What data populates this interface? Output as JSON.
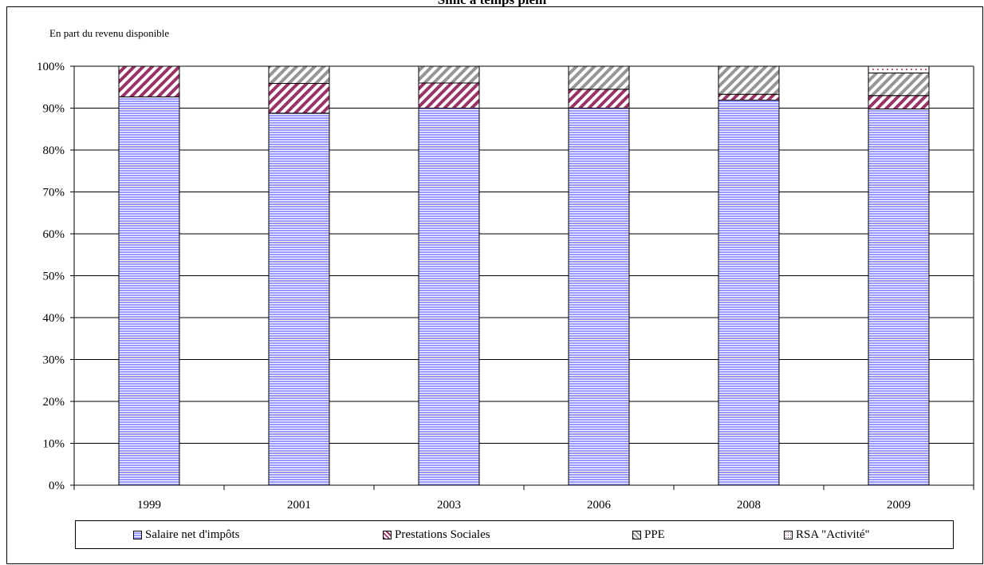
{
  "page": {
    "title": "Smic à temps plein"
  },
  "chart_data": {
    "type": "bar",
    "stacked": true,
    "title": "Smic à temps plein",
    "ylabel": "En part du revenu disponible",
    "xlabel": "",
    "categories": [
      "1999",
      "2001",
      "2003",
      "2006",
      "2008",
      "2009"
    ],
    "ylim": [
      0,
      100
    ],
    "ytick_labels": [
      "0%",
      "10%",
      "20%",
      "30%",
      "40%",
      "50%",
      "60%",
      "70%",
      "80%",
      "90%",
      "100%"
    ],
    "grid": true,
    "legend_position": "bottom",
    "series": [
      {
        "name": "Salaire net d'impôts",
        "values": [
          92.7,
          88.8,
          90.0,
          90.0,
          91.9,
          89.8
        ],
        "color": "#9999ff",
        "pattern": "horizontal-stripes"
      },
      {
        "name": "Prestations Sociales",
        "values": [
          7.3,
          7.1,
          6.0,
          4.5,
          1.4,
          3.2
        ],
        "color": "#993366",
        "pattern": "diagonal-stripes"
      },
      {
        "name": "PPE",
        "values": [
          0.0,
          4.1,
          4.0,
          5.5,
          6.7,
          5.4
        ],
        "color": "#969696",
        "pattern": "diagonal-stripes"
      },
      {
        "name": "RSA \"Activité\"",
        "values": [
          0.0,
          0.0,
          0.0,
          0.0,
          0.0,
          1.6
        ],
        "color": "#993366",
        "pattern": "dots"
      }
    ]
  }
}
